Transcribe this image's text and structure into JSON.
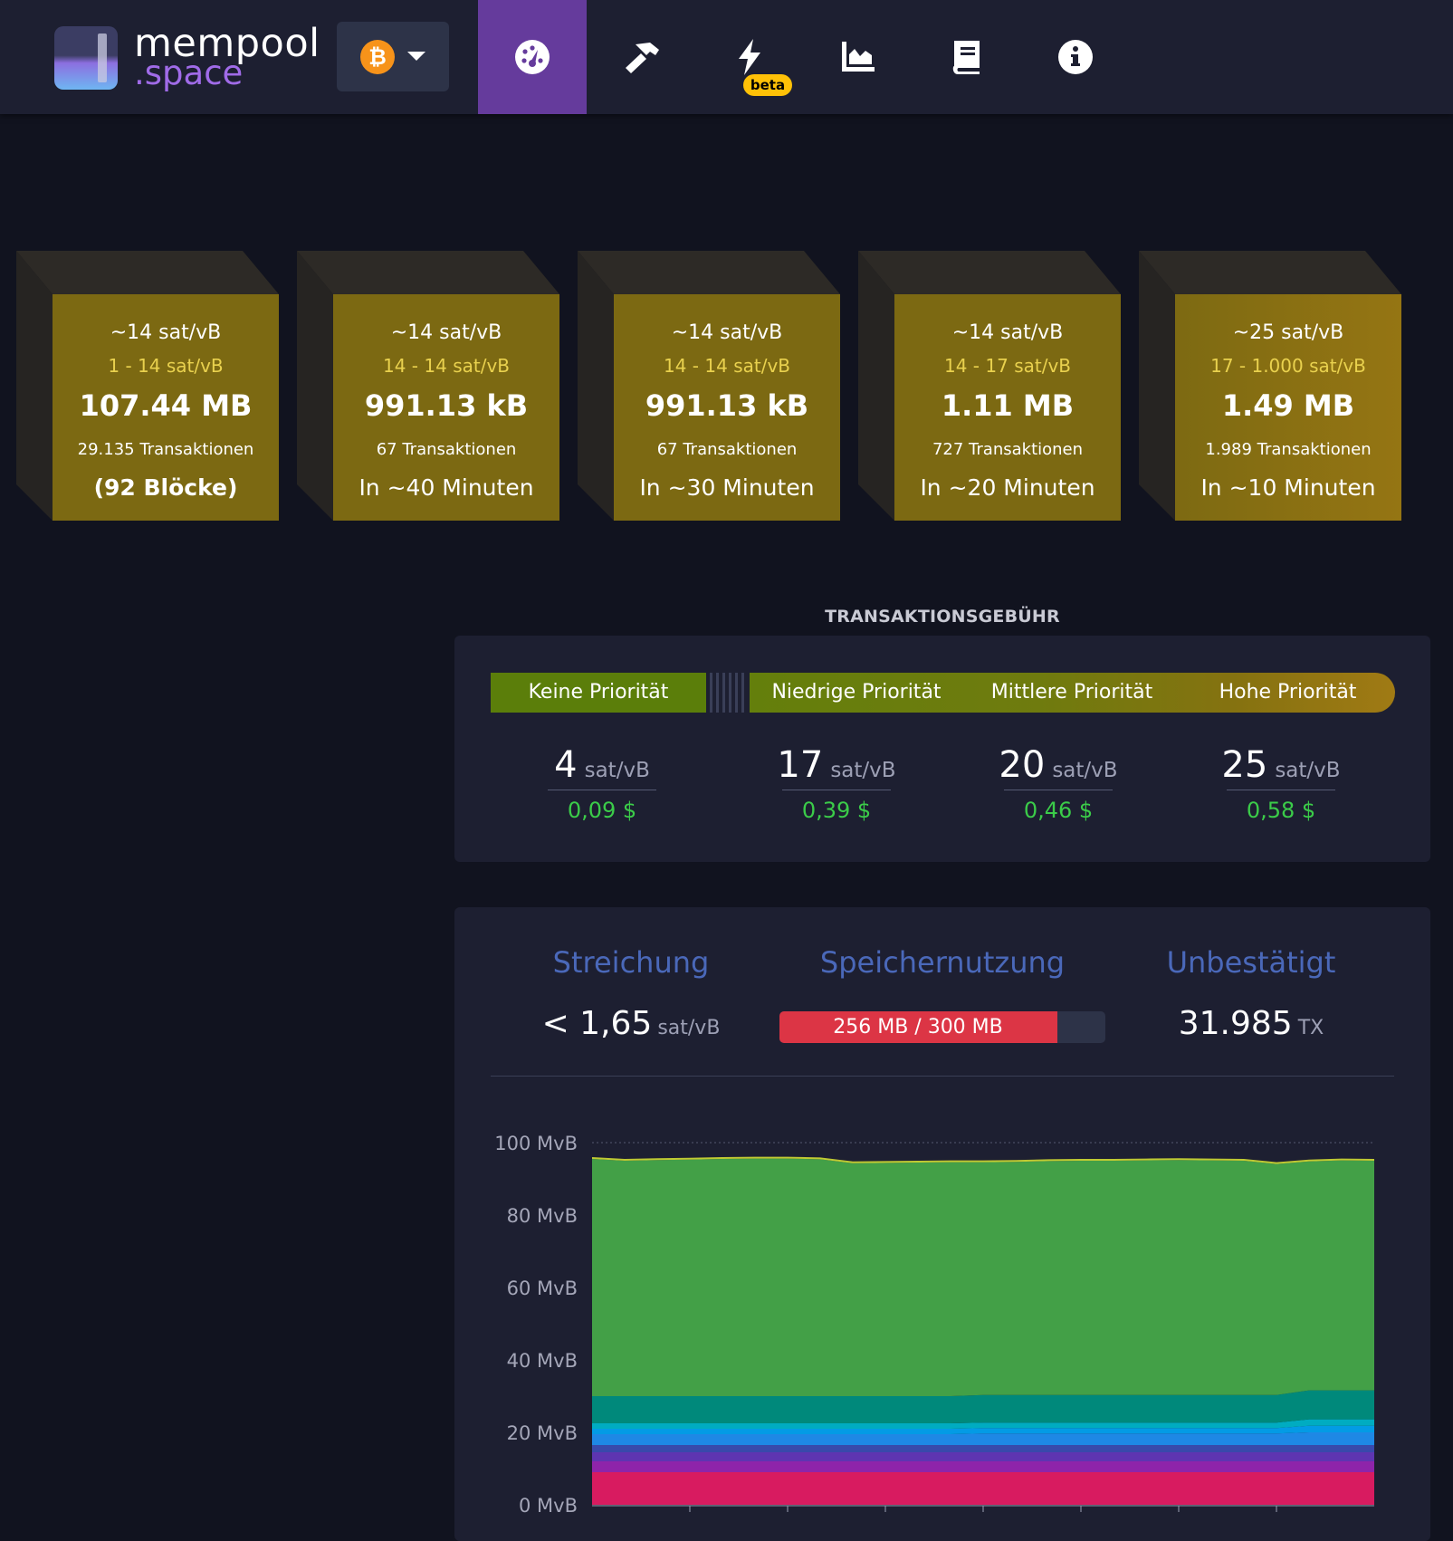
{
  "header": {
    "logo_line1": "mempool",
    "logo_line2": ".space",
    "network_icon": "bitcoin-icon",
    "nav": [
      {
        "name": "dashboard",
        "icon": "tachometer-icon",
        "active": true
      },
      {
        "name": "mining",
        "icon": "hammer-icon"
      },
      {
        "name": "lightning",
        "icon": "bolt-icon",
        "badge": "beta"
      },
      {
        "name": "graphs",
        "icon": "area-chart-icon"
      },
      {
        "name": "docs",
        "icon": "book-icon"
      },
      {
        "name": "about",
        "icon": "info-icon"
      }
    ]
  },
  "blocks": [
    {
      "median": "~14 sat/vB",
      "range": "1 - 14 sat/vB",
      "size": "107.44 MB",
      "txs": "29.135 Transaktionen",
      "eta": "(92 Blöcke)"
    },
    {
      "median": "~14 sat/vB",
      "range": "14 - 14 sat/vB",
      "size": "991.13 kB",
      "txs": "67 Transaktionen",
      "eta": "In ~40 Minuten"
    },
    {
      "median": "~14 sat/vB",
      "range": "14 - 14 sat/vB",
      "size": "991.13 kB",
      "txs": "67 Transaktionen",
      "eta": "In ~30 Minuten"
    },
    {
      "median": "~14 sat/vB",
      "range": "14 - 17 sat/vB",
      "size": "1.11 MB",
      "txs": "727 Transaktionen",
      "eta": "In ~20 Minuten"
    },
    {
      "median": "~25 sat/vB",
      "range": "17 - 1.000 sat/vB",
      "size": "1.49 MB",
      "txs": "1.989 Transaktionen",
      "eta": "In ~10 Minuten"
    }
  ],
  "fees": {
    "title": "TRANSAKTIONSGEBÜHR",
    "priorities": [
      {
        "label": "Keine Priorität",
        "rate": "4",
        "unit": "sat/vB",
        "usd": "0,09 $"
      },
      {
        "label": "Niedrige Priorität",
        "rate": "17",
        "unit": "sat/vB",
        "usd": "0,39 $"
      },
      {
        "label": "Mittlere Priorität",
        "rate": "20",
        "unit": "sat/vB",
        "usd": "0,46 $"
      },
      {
        "label": "Hohe Priorität",
        "rate": "25",
        "unit": "sat/vB",
        "usd": "0,58 $"
      }
    ]
  },
  "mempool": {
    "purging_label": "Streichung",
    "purging_value": "< 1,65",
    "purging_unit": "sat/vB",
    "memory_label": "Speichernutzung",
    "memory_value": "256 MB / 300 MB",
    "memory_fraction": 0.853,
    "unconfirmed_label": "Unbestätigt",
    "unconfirmed_value": "31.985",
    "unconfirmed_unit": "TX"
  },
  "colors": {
    "accent": "#653b9c",
    "block_face": "#7c6912",
    "fee_green": "#3bcc49",
    "memory_bar": "#dc3545",
    "heading_blue": "#4a68b9"
  },
  "chart_data": {
    "type": "area",
    "yunit": "MvB",
    "ylim": [
      0,
      100
    ],
    "yticks": [
      "100 MvB",
      "80 MvB",
      "60 MvB",
      "40 MvB",
      "20 MvB",
      "0 MvB"
    ],
    "x": [
      0,
      1,
      2,
      3,
      4,
      5,
      6,
      7,
      8,
      9,
      10,
      11,
      12,
      13,
      14,
      15,
      16,
      17,
      18,
      19,
      20,
      21,
      22,
      23,
      24
    ],
    "series": [
      {
        "color": "#d81b60",
        "values": [
          9,
          9,
          9,
          9,
          9,
          9,
          9,
          9,
          9,
          9,
          9,
          9,
          9,
          9,
          9,
          9,
          9,
          9,
          9,
          9,
          9,
          9,
          9,
          9,
          9
        ]
      },
      {
        "color": "#8e24aa",
        "values": [
          3,
          3,
          3,
          3,
          3,
          3,
          3,
          3,
          3,
          3,
          3,
          3,
          3,
          3,
          3,
          3,
          3,
          3,
          3,
          3,
          3,
          3,
          3,
          3,
          3
        ]
      },
      {
        "color": "#5e35b1",
        "values": [
          2.5,
          2.5,
          2.5,
          2.5,
          2.5,
          2.5,
          2.5,
          2.5,
          2.5,
          2.5,
          2.5,
          2.5,
          2.5,
          2.5,
          2.5,
          2.5,
          2.5,
          2.5,
          2.5,
          2.5,
          2.5,
          2.5,
          2.5,
          2.5,
          2.5
        ]
      },
      {
        "color": "#3949ab",
        "values": [
          2,
          2,
          2,
          2,
          2,
          2,
          2,
          2,
          2,
          2,
          2,
          2,
          2,
          2,
          2,
          2,
          2,
          2,
          2,
          2,
          2,
          2,
          2,
          2,
          2
        ]
      },
      {
        "color": "#1e88e5",
        "values": [
          3,
          3,
          3,
          3,
          3,
          3,
          3,
          3,
          3,
          3,
          3,
          3,
          3.2,
          3.2,
          3.2,
          3.2,
          3.2,
          3.2,
          3.2,
          3.2,
          3.2,
          3.2,
          3.5,
          3.5,
          3.5
        ]
      },
      {
        "color": "#039be5",
        "values": [
          1.5,
          1.5,
          1.5,
          1.5,
          1.5,
          1.5,
          1.5,
          1.5,
          1.5,
          1.5,
          1.5,
          1.5,
          1.5,
          1.5,
          1.5,
          1.5,
          1.5,
          1.5,
          1.5,
          1.5,
          1.5,
          1.5,
          1.8,
          1.8,
          1.8
        ]
      },
      {
        "color": "#00acc1",
        "values": [
          1.5,
          1.5,
          1.5,
          1.5,
          1.5,
          1.5,
          1.5,
          1.5,
          1.5,
          1.5,
          1.5,
          1.5,
          1.5,
          1.5,
          1.5,
          1.5,
          1.5,
          1.5,
          1.5,
          1.5,
          1.5,
          1.5,
          1.8,
          1.8,
          1.8
        ]
      },
      {
        "color": "#00897b",
        "values": [
          7.5,
          7.5,
          7.5,
          7.5,
          7.5,
          7.5,
          7.5,
          7.5,
          7.5,
          7.5,
          7.5,
          7.5,
          7.6,
          7.6,
          7.6,
          7.6,
          7.6,
          7.6,
          7.6,
          7.6,
          7.6,
          7.6,
          8,
          8,
          8
        ]
      },
      {
        "color": "#43a047",
        "values": [
          65.5,
          65,
          65.2,
          65.3,
          65.5,
          65.6,
          65.6,
          65.4,
          64.3,
          64.4,
          64.5,
          64.6,
          64.3,
          64.4,
          64.6,
          64.7,
          64.7,
          64.8,
          64.9,
          64.8,
          64.7,
          63.8,
          63.2,
          63.5,
          63.4
        ]
      },
      {
        "color": "#c0ca33",
        "values": [
          0.5,
          0.5,
          0.5,
          0.5,
          0.5,
          0.5,
          0.5,
          0.5,
          0.5,
          0.5,
          0.5,
          0.5,
          0.5,
          0.5,
          0.5,
          0.5,
          0.5,
          0.5,
          0.5,
          0.5,
          0.5,
          0.5,
          0.5,
          0.5,
          0.5
        ]
      }
    ]
  }
}
